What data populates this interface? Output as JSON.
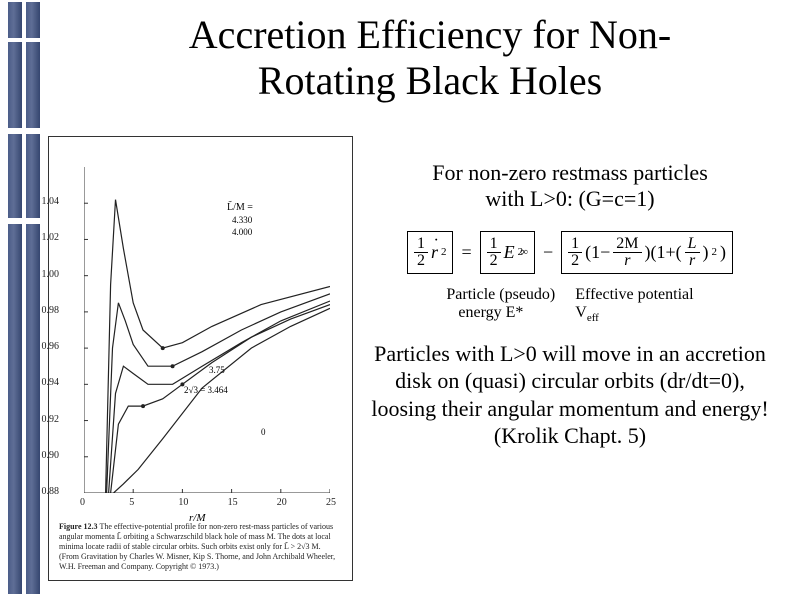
{
  "title": "Accretion Efficiency for Non-Rotating Black Holes",
  "intro": {
    "line1": "For non-zero restmass particles",
    "line2": "with L>0: (G=c=1)"
  },
  "equation": {
    "lhs": {
      "coef_num": "1",
      "coef_den": "2",
      "var": "r",
      "var_exp": "2",
      "dotted": true
    },
    "term1": {
      "coef_num": "1",
      "coef_den": "2",
      "var": "E",
      "subscript": "∞",
      "exp": "2"
    },
    "term2": {
      "coef_num": "1",
      "coef_den": "2",
      "paren1_num": "2M",
      "paren1_den": "r",
      "paren2_inner_num": "L",
      "paren2_inner_den": "r",
      "paren2_exp": "2"
    }
  },
  "eq_labels": {
    "left_l1": "Particle (pseudo)",
    "left_l2": "energy E*",
    "right_l1": "Effective potential",
    "right_l2_base": "V",
    "right_l2_sub": "eff"
  },
  "conclusion": "Particles with L>0 will move in an accretion disk on (quasi) circular orbits (dr/dt=0), loosing their angular momentum and energy! (Krolik Chapt. 5)",
  "figure": {
    "type": "line",
    "xlabel": "r/M",
    "xlim": [
      0,
      25
    ],
    "xticks": [
      0,
      5,
      10,
      15,
      20,
      25
    ],
    "ylim": [
      0.88,
      1.06
    ],
    "yticks": [
      0.88,
      0.9,
      0.92,
      0.94,
      0.96,
      0.98,
      1.0,
      1.02,
      1.04
    ],
    "grid": false,
    "background_color": "#ffffff",
    "axis_color": "#333333",
    "line_color": "#222222",
    "line_width": 1.2,
    "l_tilde_label": "L̃/M =",
    "series": [
      {
        "label": "4.330",
        "x": [
          2.2,
          2.7,
          3.2,
          4.0,
          5.0,
          6.0,
          8.0,
          10,
          13,
          18,
          25
        ],
        "y": [
          0.88,
          0.995,
          1.042,
          1.015,
          0.985,
          0.97,
          0.96,
          0.963,
          0.972,
          0.984,
          0.994
        ]
      },
      {
        "label": "4.000",
        "x": [
          2.3,
          2.9,
          3.5,
          4.2,
          5.0,
          6.5,
          9.0,
          12,
          16,
          20,
          25
        ],
        "y": [
          0.88,
          0.96,
          0.985,
          0.975,
          0.962,
          0.95,
          0.95,
          0.958,
          0.97,
          0.98,
          0.99
        ]
      },
      {
        "label": "3.75",
        "x": [
          2.5,
          3.2,
          4.0,
          5.0,
          6.5,
          9.0,
          12,
          16,
          20,
          25
        ],
        "y": [
          0.88,
          0.935,
          0.95,
          0.946,
          0.94,
          0.94,
          0.95,
          0.963,
          0.975,
          0.986
        ]
      },
      {
        "label": "2√3 = 3.464",
        "x": [
          2.7,
          3.5,
          4.5,
          6.0,
          8.0,
          10,
          13,
          17,
          21,
          25
        ],
        "y": [
          0.88,
          0.918,
          0.928,
          0.928,
          0.932,
          0.94,
          0.952,
          0.966,
          0.976,
          0.984
        ]
      },
      {
        "label": "0",
        "x": [
          3.0,
          4.0,
          5.5,
          8.0,
          12,
          17,
          21,
          25
        ],
        "y": [
          0.88,
          0.885,
          0.893,
          0.91,
          0.938,
          0.96,
          0.972,
          0.982
        ]
      }
    ],
    "caption_fignum": "Figure 12.3",
    "caption": "The effective-potential profile for non-zero rest-mass particles of various angular momenta L̃ orbiting a Schwarzschild black hole of mass M. The dots at local minima locate radii of stable circular orbits. Such orbits exist only for L̃ > 2√3 M. (From Gravitation by Charles W. Misner, Kip S. Thorne, and John Archibald Wheeler, W.H. Freeman and Company. Copyright © 1973.)"
  },
  "accent_color": "#4b5d88"
}
